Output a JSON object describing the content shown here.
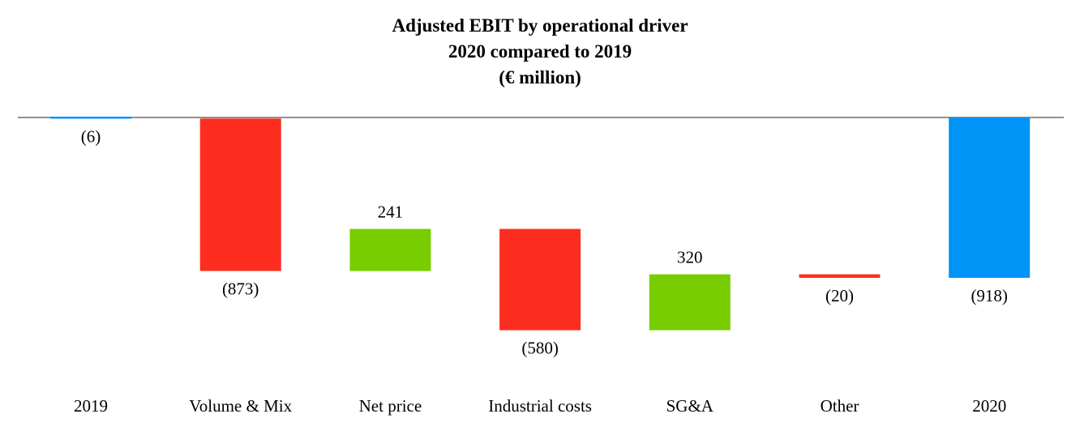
{
  "chart_data": {
    "type": "bar",
    "subtype": "waterfall",
    "title": "Adjusted EBIT by operational driver",
    "subtitle": "2020 compared to 2019",
    "unit": "(€ million)",
    "xlabel": "",
    "ylabel": "",
    "grid": false,
    "legend": "none",
    "ylim": [
      -960,
      0
    ],
    "categories": [
      "2019",
      "Volume & Mix",
      "Net price",
      "Industrial costs",
      "SG&A",
      "Other",
      "2020"
    ],
    "values": [
      -6,
      -873,
      241,
      -580,
      320,
      -20,
      -918
    ],
    "kinds": [
      "total",
      "delta",
      "delta",
      "delta",
      "delta",
      "delta",
      "total"
    ],
    "data_labels": [
      "(6)",
      "(873)",
      "241",
      "(580)",
      "320",
      "(20)",
      "(918)"
    ],
    "colors": {
      "total": "#0094f7",
      "decrease": "#fd2d1f",
      "increase": "#77cd00",
      "baseline": "#6e6e6e"
    }
  }
}
